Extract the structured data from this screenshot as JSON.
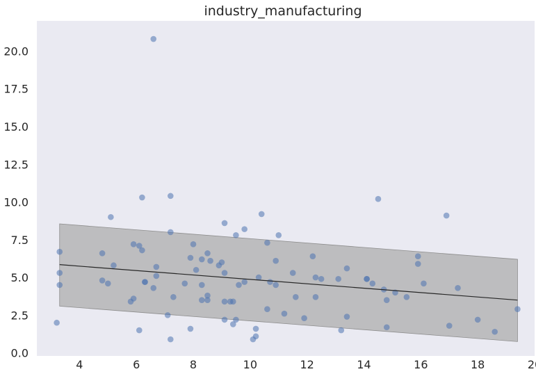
{
  "chart_data": {
    "type": "scatter",
    "title": "industry_manufacturing",
    "xlabel": "",
    "ylabel": "",
    "xlim": [
      2.5,
      20
    ],
    "ylim": [
      -0.2,
      22
    ],
    "grid": false,
    "x_ticks": [
      4,
      6,
      8,
      10,
      12,
      14,
      16,
      18,
      20
    ],
    "y_ticks": [
      0.0,
      2.5,
      5.0,
      7.5,
      10.0,
      12.5,
      15.0,
      17.5,
      20.0
    ],
    "x_tick_labels": [
      "4",
      "6",
      "8",
      "10",
      "12",
      "14",
      "16",
      "18",
      "20"
    ],
    "y_tick_labels": [
      "0.0",
      "2.5",
      "5.0",
      "7.5",
      "10.0",
      "12.5",
      "15.0",
      "17.5",
      "20.0"
    ],
    "colors": {
      "background": "#eaeaf2",
      "points": "#4c72b0",
      "band": "#a9a9a9",
      "line": "#262626"
    },
    "points": [
      {
        "x": 3.2,
        "y": 2.0
      },
      {
        "x": 3.3,
        "y": 6.7
      },
      {
        "x": 3.3,
        "y": 5.3
      },
      {
        "x": 3.3,
        "y": 4.5
      },
      {
        "x": 4.8,
        "y": 6.6
      },
      {
        "x": 4.8,
        "y": 4.8
      },
      {
        "x": 5.0,
        "y": 4.6
      },
      {
        "x": 5.1,
        "y": 9.0
      },
      {
        "x": 5.2,
        "y": 5.8
      },
      {
        "x": 5.8,
        "y": 3.4
      },
      {
        "x": 5.9,
        "y": 3.6
      },
      {
        "x": 5.9,
        "y": 7.2
      },
      {
        "x": 6.1,
        "y": 7.1
      },
      {
        "x": 6.1,
        "y": 1.5
      },
      {
        "x": 6.2,
        "y": 6.8
      },
      {
        "x": 6.2,
        "y": 10.3
      },
      {
        "x": 6.3,
        "y": 4.7
      },
      {
        "x": 6.3,
        "y": 4.7
      },
      {
        "x": 6.6,
        "y": 20.8
      },
      {
        "x": 6.6,
        "y": 4.3
      },
      {
        "x": 6.7,
        "y": 5.7
      },
      {
        "x": 6.7,
        "y": 5.1
      },
      {
        "x": 7.1,
        "y": 2.5
      },
      {
        "x": 7.2,
        "y": 10.4
      },
      {
        "x": 7.2,
        "y": 8.0
      },
      {
        "x": 7.2,
        "y": 0.9
      },
      {
        "x": 7.3,
        "y": 3.7
      },
      {
        "x": 7.7,
        "y": 4.6
      },
      {
        "x": 7.9,
        "y": 6.3
      },
      {
        "x": 7.9,
        "y": 1.6
      },
      {
        "x": 8.0,
        "y": 7.2
      },
      {
        "x": 8.1,
        "y": 5.5
      },
      {
        "x": 8.3,
        "y": 6.2
      },
      {
        "x": 8.3,
        "y": 4.5
      },
      {
        "x": 8.3,
        "y": 3.5
      },
      {
        "x": 8.5,
        "y": 6.6
      },
      {
        "x": 8.5,
        "y": 3.8
      },
      {
        "x": 8.5,
        "y": 3.5
      },
      {
        "x": 8.6,
        "y": 6.1
      },
      {
        "x": 8.9,
        "y": 5.8
      },
      {
        "x": 9.0,
        "y": 6.0
      },
      {
        "x": 9.1,
        "y": 8.6
      },
      {
        "x": 9.1,
        "y": 5.3
      },
      {
        "x": 9.1,
        "y": 3.4
      },
      {
        "x": 9.1,
        "y": 2.2
      },
      {
        "x": 9.3,
        "y": 3.4
      },
      {
        "x": 9.4,
        "y": 3.4
      },
      {
        "x": 9.4,
        "y": 1.9
      },
      {
        "x": 9.5,
        "y": 7.8
      },
      {
        "x": 9.5,
        "y": 2.2
      },
      {
        "x": 9.6,
        "y": 4.5
      },
      {
        "x": 9.8,
        "y": 8.2
      },
      {
        "x": 9.8,
        "y": 4.7
      },
      {
        "x": 10.1,
        "y": 0.9
      },
      {
        "x": 10.2,
        "y": 1.6
      },
      {
        "x": 10.2,
        "y": 1.1
      },
      {
        "x": 10.3,
        "y": 5.0
      },
      {
        "x": 10.4,
        "y": 9.2
      },
      {
        "x": 10.6,
        "y": 7.3
      },
      {
        "x": 10.6,
        "y": 2.9
      },
      {
        "x": 10.7,
        "y": 4.7
      },
      {
        "x": 10.9,
        "y": 6.1
      },
      {
        "x": 10.9,
        "y": 4.5
      },
      {
        "x": 11.0,
        "y": 7.8
      },
      {
        "x": 11.2,
        "y": 2.6
      },
      {
        "x": 11.5,
        "y": 5.3
      },
      {
        "x": 11.6,
        "y": 3.7
      },
      {
        "x": 11.9,
        "y": 2.3
      },
      {
        "x": 12.2,
        "y": 6.4
      },
      {
        "x": 12.3,
        "y": 5.0
      },
      {
        "x": 12.3,
        "y": 3.7
      },
      {
        "x": 12.5,
        "y": 4.9
      },
      {
        "x": 13.1,
        "y": 4.9
      },
      {
        "x": 13.2,
        "y": 1.5
      },
      {
        "x": 13.4,
        "y": 5.6
      },
      {
        "x": 13.4,
        "y": 2.4
      },
      {
        "x": 14.1,
        "y": 4.9
      },
      {
        "x": 14.1,
        "y": 4.9
      },
      {
        "x": 14.3,
        "y": 4.6
      },
      {
        "x": 14.5,
        "y": 10.2
      },
      {
        "x": 14.7,
        "y": 4.2
      },
      {
        "x": 14.8,
        "y": 3.5
      },
      {
        "x": 14.8,
        "y": 1.7
      },
      {
        "x": 15.1,
        "y": 4.0
      },
      {
        "x": 15.5,
        "y": 3.7
      },
      {
        "x": 15.9,
        "y": 6.4
      },
      {
        "x": 15.9,
        "y": 5.9
      },
      {
        "x": 16.1,
        "y": 4.6
      },
      {
        "x": 16.9,
        "y": 9.1
      },
      {
        "x": 17.0,
        "y": 1.8
      },
      {
        "x": 17.3,
        "y": 4.3
      },
      {
        "x": 18.0,
        "y": 2.2
      },
      {
        "x": 18.6,
        "y": 1.4
      },
      {
        "x": 19.4,
        "y": 2.9
      }
    ],
    "regression_line": {
      "x": [
        3.3,
        19.4
      ],
      "y": [
        5.85,
        3.5
      ]
    },
    "band": {
      "x": [
        3.3,
        19.4
      ],
      "upper": [
        8.55,
        6.2
      ],
      "lower": [
        3.1,
        0.75
      ]
    }
  }
}
